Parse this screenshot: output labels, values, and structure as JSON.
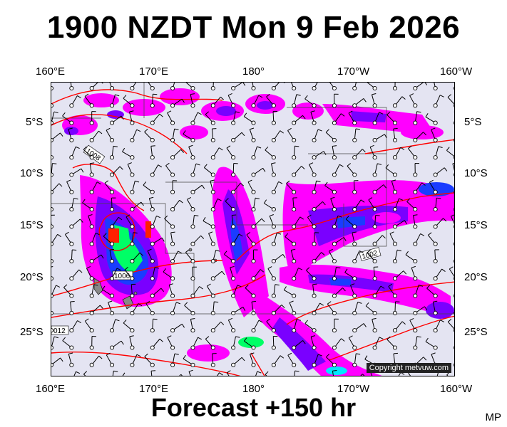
{
  "title": "1900 NZDT Mon 9 Feb 2026",
  "subtitle": "Forecast +150 hr",
  "initials": "MP",
  "copyright": "Copyright metvuw.com",
  "longitude_labels": [
    "160°E",
    "170°E",
    "180°",
    "170°W",
    "160°W"
  ],
  "latitude_labels": [
    "5°S",
    "10°S",
    "15°S",
    "20°S",
    "25°S"
  ],
  "pressure_labels": [
    "1008",
    "1006",
    "1002",
    "012"
  ],
  "colors": {
    "background": "#e4e4f2",
    "isobar": "#ff0000",
    "rain_light": "#ff00ff",
    "rain_moderate": "#7a00ff",
    "rain_heavy": "#1a3cff",
    "rain_very_heavy": "#00e8ff",
    "rain_extreme": "#00ff66",
    "rain_peak": "#ff2000"
  }
}
